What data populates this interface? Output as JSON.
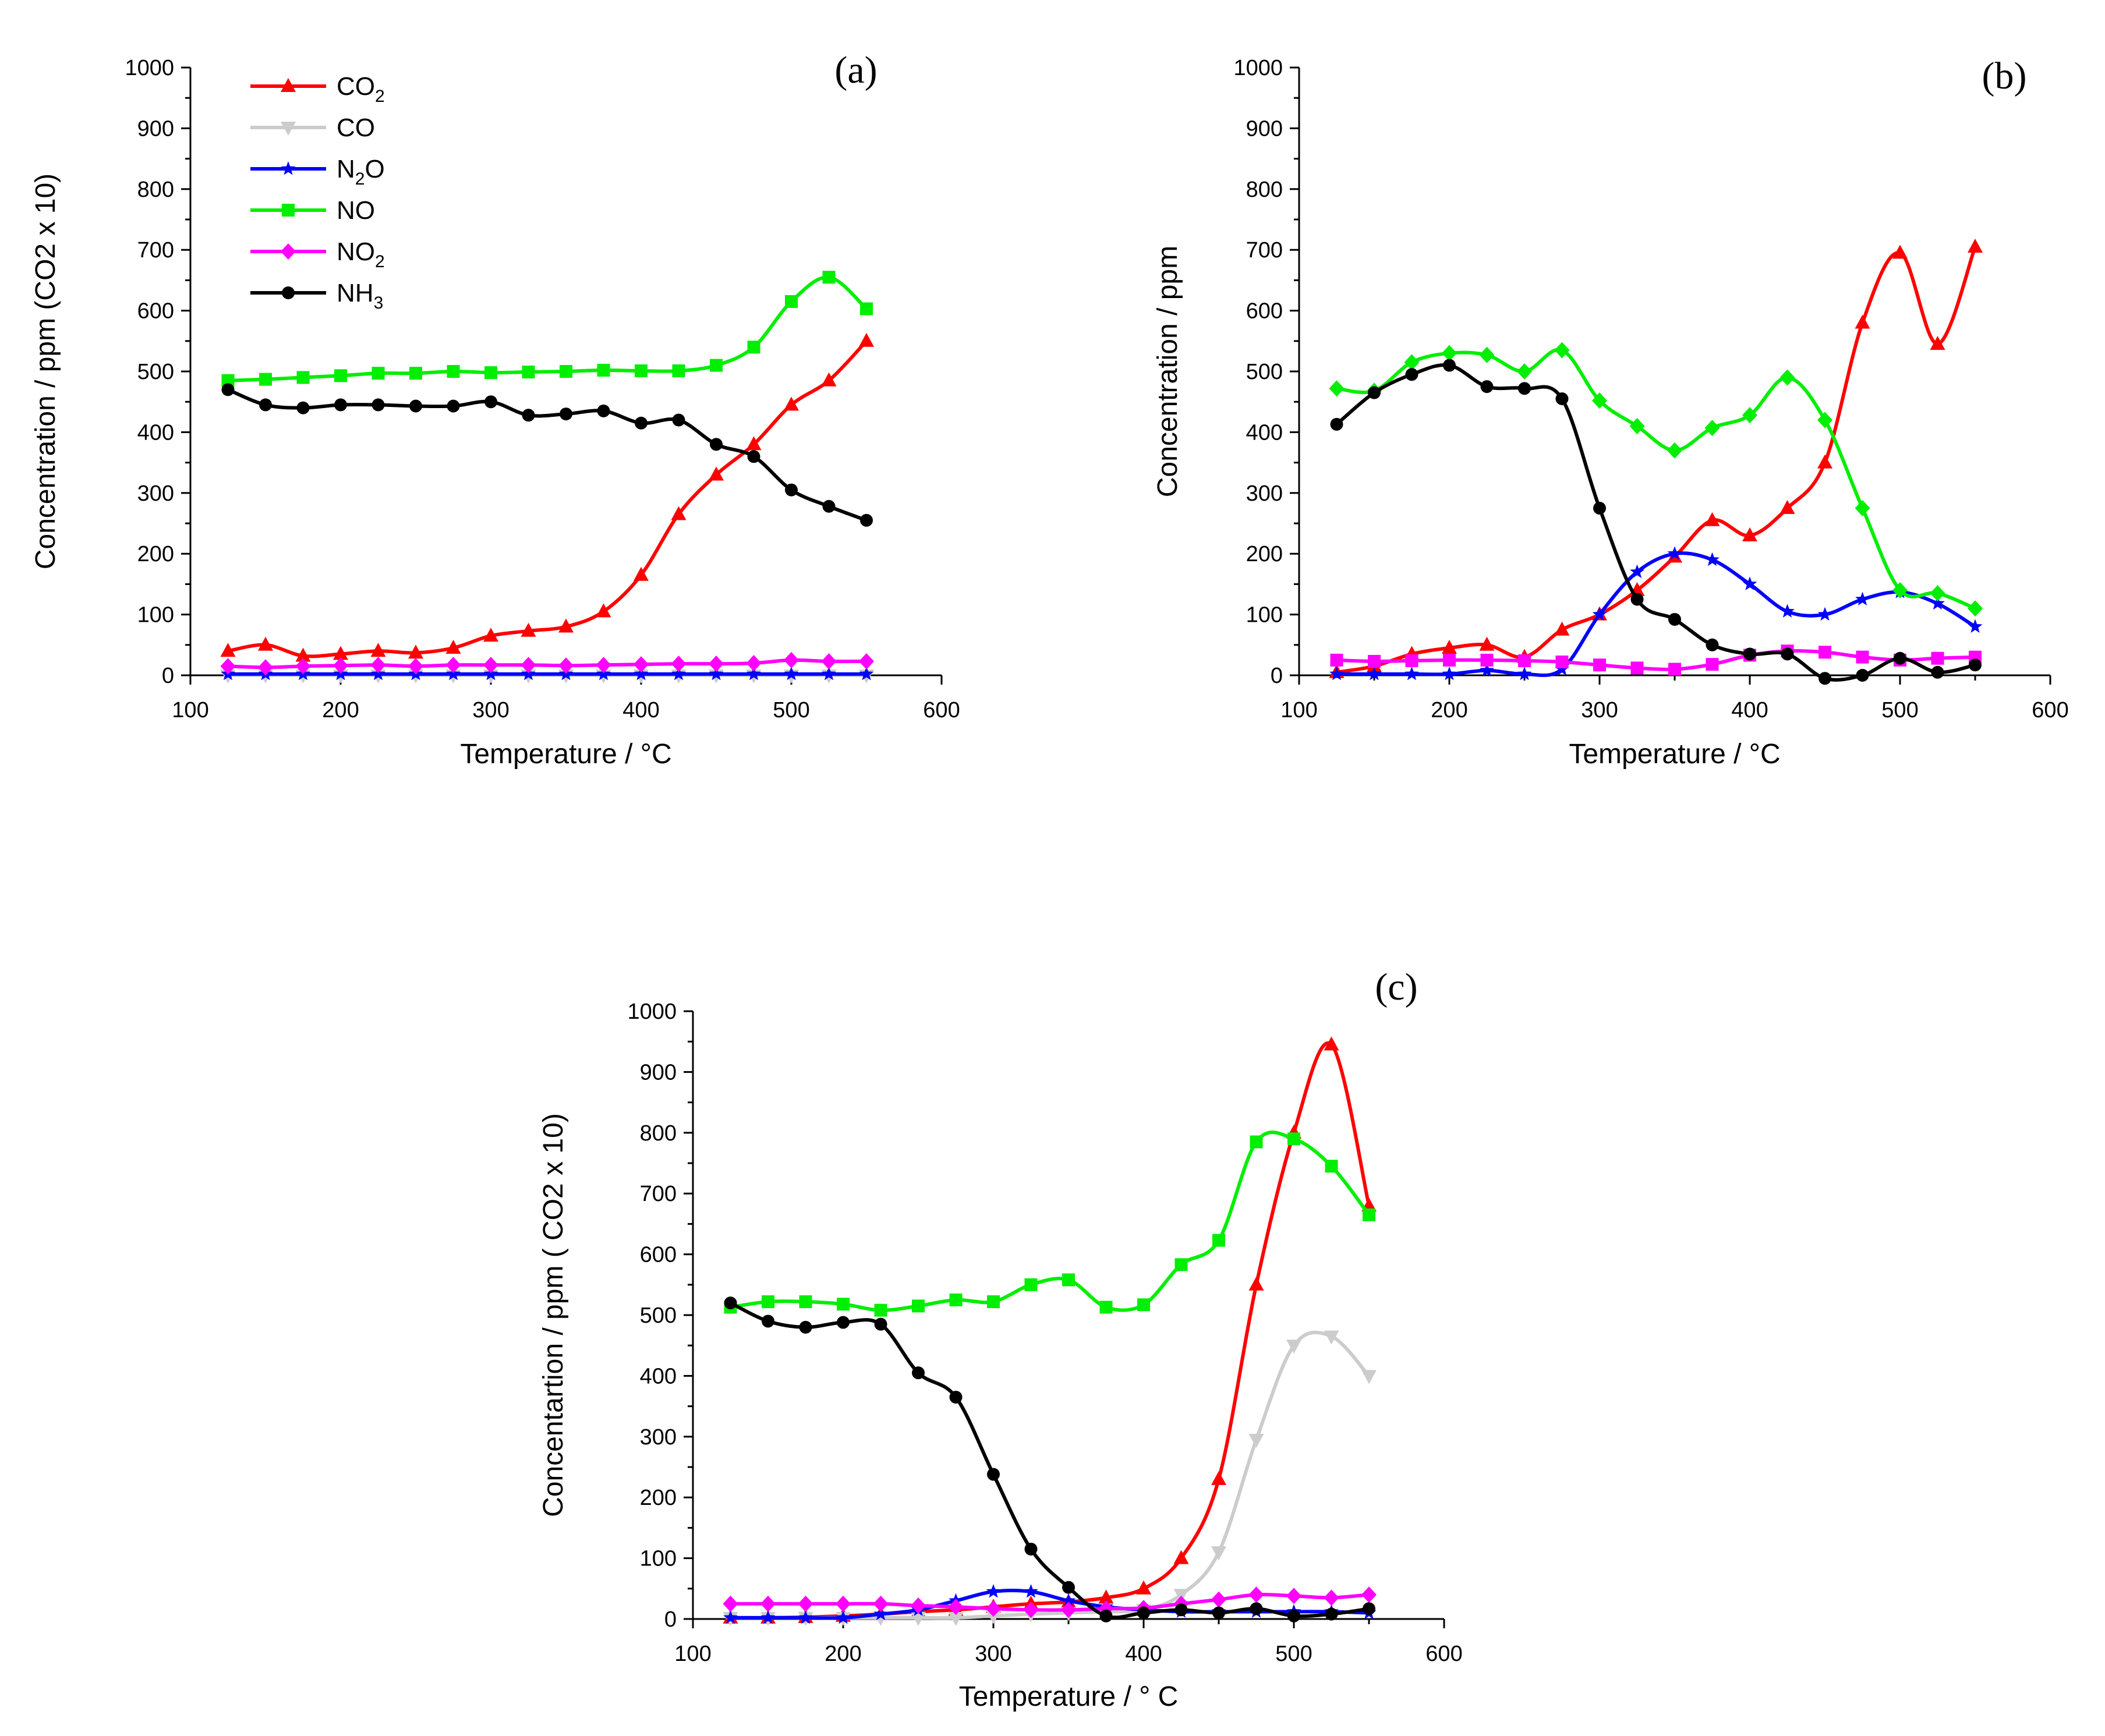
{
  "x_ticks": [
    "100",
    "200",
    "300",
    "400",
    "500",
    "600"
  ],
  "y_ticks": [
    "0",
    "100",
    "200",
    "300",
    "400",
    "500",
    "600",
    "700",
    "800",
    "900",
    "1000"
  ],
  "chart_data": [
    {
      "type": "line",
      "panel_label": "(a)",
      "xlabel": "Temperature / °C",
      "ylabel": "Concentration / ppm (CO2 x 10)",
      "xlim": [
        100,
        600
      ],
      "ylim": [
        0,
        1000
      ],
      "legend": {
        "placement": "top-left",
        "entries": [
          {
            "series": "CO2",
            "base": "CO",
            "sub": "2",
            "tail": ""
          },
          {
            "series": "CO",
            "base": "CO",
            "sub": "",
            "tail": ""
          },
          {
            "series": "N2O",
            "base": "N",
            "sub": "2",
            "tail": "O"
          },
          {
            "series": "NO",
            "base": "NO",
            "sub": "",
            "tail": ""
          },
          {
            "series": "NO2",
            "base": "NO",
            "sub": "2",
            "tail": ""
          },
          {
            "series": "NH3",
            "base": "NH",
            "sub": "3",
            "tail": ""
          }
        ]
      },
      "series": [
        {
          "name": "CO2",
          "color": "#ff0000",
          "marker": "triangle-up",
          "x": [
            125,
            150,
            175,
            200,
            225,
            250,
            275,
            300,
            325,
            350,
            375,
            400,
            425,
            450,
            475,
            500,
            525,
            550
          ],
          "y": [
            40,
            50,
            32,
            35,
            40,
            37,
            45,
            65,
            73,
            80,
            105,
            165,
            265,
            330,
            380,
            445,
            485,
            550
          ]
        },
        {
          "name": "CO",
          "color": "#cccccc",
          "marker": "triangle-down",
          "x": [
            125,
            150,
            175,
            200,
            225,
            250,
            275,
            300,
            325,
            350,
            375,
            400,
            425,
            450,
            475,
            500,
            525,
            550
          ],
          "y": [
            0,
            0,
            0,
            0,
            0,
            0,
            0,
            0,
            0,
            0,
            0,
            0,
            0,
            0,
            0,
            0,
            0,
            0
          ]
        },
        {
          "name": "N2O",
          "color": "#0000ff",
          "marker": "star",
          "x": [
            125,
            150,
            175,
            200,
            225,
            250,
            275,
            300,
            325,
            350,
            375,
            400,
            425,
            450,
            475,
            500,
            525,
            550
          ],
          "y": [
            2,
            2,
            2,
            2,
            2,
            2,
            2,
            2,
            2,
            2,
            2,
            2,
            2,
            2,
            2,
            2,
            2,
            2
          ]
        },
        {
          "name": "NO",
          "color": "#00ee00",
          "marker": "square",
          "x": [
            125,
            150,
            175,
            200,
            225,
            250,
            275,
            300,
            325,
            350,
            375,
            400,
            425,
            450,
            475,
            500,
            525,
            550
          ],
          "y": [
            485,
            487,
            490,
            493,
            497,
            497,
            500,
            498,
            499,
            500,
            502,
            501,
            501,
            510,
            540,
            615,
            655,
            603
          ]
        },
        {
          "name": "NO2",
          "color": "#ff00ff",
          "marker": "diamond",
          "x": [
            125,
            150,
            175,
            200,
            225,
            250,
            275,
            300,
            325,
            350,
            375,
            400,
            425,
            450,
            475,
            500,
            525,
            550
          ],
          "y": [
            15,
            13,
            15,
            16,
            17,
            15,
            17,
            17,
            17,
            16,
            17,
            18,
            19,
            19,
            20,
            25,
            23,
            23
          ]
        },
        {
          "name": "NH3",
          "color": "#000000",
          "marker": "circle",
          "x": [
            125,
            150,
            175,
            200,
            225,
            250,
            275,
            300,
            325,
            350,
            375,
            400,
            425,
            450,
            475,
            500,
            525,
            550
          ],
          "y": [
            470,
            445,
            440,
            445,
            445,
            443,
            443,
            450,
            428,
            430,
            435,
            415,
            420,
            380,
            360,
            305,
            278,
            255
          ]
        }
      ]
    },
    {
      "type": "line",
      "panel_label": "(b)",
      "xlabel": "Temperature / °C",
      "ylabel": "Concentration / ppm",
      "xlim": [
        100,
        600
      ],
      "ylim": [
        0,
        1000
      ],
      "series": [
        {
          "name": "CO2",
          "color": "#ff0000",
          "marker": "triangle-up",
          "x": [
            125,
            150,
            175,
            200,
            225,
            250,
            275,
            300,
            325,
            350,
            375,
            400,
            425,
            450,
            475,
            500,
            525,
            550
          ],
          "y": [
            5,
            15,
            35,
            45,
            50,
            30,
            75,
            100,
            140,
            195,
            255,
            230,
            275,
            350,
            580,
            695,
            545,
            705
          ]
        },
        {
          "name": "N2O",
          "color": "#0000ff",
          "marker": "star",
          "x": [
            125,
            150,
            175,
            200,
            225,
            250,
            275,
            300,
            325,
            350,
            375,
            400,
            425,
            450,
            475,
            500,
            525,
            550
          ],
          "y": [
            2,
            2,
            2,
            2,
            8,
            2,
            10,
            100,
            170,
            200,
            190,
            150,
            105,
            100,
            125,
            137,
            118,
            80
          ]
        },
        {
          "name": "NO",
          "color": "#00ee00",
          "marker": "diamond",
          "x": [
            125,
            150,
            175,
            200,
            225,
            250,
            275,
            300,
            325,
            350,
            375,
            400,
            425,
            450,
            475,
            500,
            525,
            550
          ],
          "y": [
            472,
            468,
            515,
            530,
            527,
            500,
            535,
            452,
            410,
            370,
            407,
            428,
            490,
            420,
            275,
            140,
            135,
            110
          ]
        },
        {
          "name": "NO2",
          "color": "#ff00ff",
          "marker": "square",
          "x": [
            125,
            150,
            175,
            200,
            225,
            250,
            275,
            300,
            325,
            350,
            375,
            400,
            425,
            450,
            475,
            500,
            525,
            550
          ],
          "y": [
            25,
            23,
            24,
            25,
            25,
            24,
            22,
            17,
            12,
            10,
            18,
            33,
            40,
            38,
            30,
            25,
            28,
            30
          ]
        },
        {
          "name": "NH3",
          "color": "#000000",
          "marker": "circle",
          "x": [
            125,
            150,
            175,
            200,
            225,
            250,
            275,
            300,
            325,
            350,
            375,
            400,
            425,
            450,
            475,
            500,
            525,
            550
          ],
          "y": [
            413,
            465,
            495,
            510,
            475,
            472,
            455,
            275,
            125,
            92,
            50,
            35,
            35,
            -5,
            0,
            28,
            5,
            17
          ]
        }
      ]
    },
    {
      "type": "line",
      "panel_label": "(c)",
      "xlabel": "Temperature / ° C",
      "ylabel": "Concentartion / ppm ( CO2 x 10)",
      "xlim": [
        100,
        600
      ],
      "ylim": [
        0,
        1000
      ],
      "series": [
        {
          "name": "CO2",
          "color": "#ff0000",
          "marker": "triangle-up",
          "x": [
            125,
            150,
            175,
            200,
            225,
            250,
            275,
            300,
            325,
            350,
            375,
            400,
            425,
            450,
            475,
            500,
            525,
            550
          ],
          "y": [
            2,
            2,
            3,
            5,
            8,
            12,
            15,
            20,
            25,
            28,
            35,
            50,
            100,
            230,
            550,
            800,
            945,
            680
          ]
        },
        {
          "name": "CO",
          "color": "#cccccc",
          "marker": "triangle-down",
          "x": [
            125,
            150,
            175,
            200,
            225,
            250,
            275,
            300,
            325,
            350,
            375,
            400,
            425,
            450,
            475,
            500,
            525,
            550
          ],
          "y": [
            2,
            2,
            2,
            2,
            2,
            2,
            2,
            5,
            8,
            10,
            12,
            15,
            40,
            110,
            295,
            450,
            465,
            400
          ]
        },
        {
          "name": "N2O",
          "color": "#0000ff",
          "marker": "star",
          "x": [
            125,
            150,
            175,
            200,
            225,
            250,
            275,
            300,
            325,
            350,
            375,
            400,
            425,
            450,
            475,
            500,
            525,
            550
          ],
          "y": [
            2,
            2,
            2,
            2,
            8,
            15,
            30,
            45,
            45,
            30,
            20,
            15,
            12,
            12,
            12,
            12,
            12,
            10
          ]
        },
        {
          "name": "NO",
          "color": "#00ee00",
          "marker": "square",
          "x": [
            125,
            150,
            175,
            200,
            225,
            250,
            275,
            300,
            325,
            350,
            375,
            400,
            425,
            450,
            475,
            500,
            525,
            550
          ],
          "y": [
            513,
            522,
            522,
            518,
            508,
            515,
            525,
            522,
            550,
            558,
            513,
            517,
            583,
            623,
            785,
            790,
            745,
            665
          ]
        },
        {
          "name": "NO2",
          "color": "#ff00ff",
          "marker": "diamond",
          "x": [
            125,
            150,
            175,
            200,
            225,
            250,
            275,
            300,
            325,
            350,
            375,
            400,
            425,
            450,
            475,
            500,
            525,
            550
          ],
          "y": [
            25,
            25,
            25,
            25,
            25,
            22,
            20,
            17,
            15,
            15,
            17,
            18,
            25,
            32,
            40,
            38,
            35,
            40
          ]
        },
        {
          "name": "NH3",
          "color": "#000000",
          "marker": "circle",
          "x": [
            125,
            150,
            175,
            200,
            225,
            250,
            275,
            300,
            325,
            350,
            375,
            400,
            425,
            450,
            475,
            500,
            525,
            550
          ],
          "y": [
            520,
            490,
            480,
            488,
            485,
            405,
            365,
            238,
            115,
            52,
            5,
            10,
            15,
            10,
            17,
            5,
            8,
            17
          ]
        }
      ]
    }
  ]
}
